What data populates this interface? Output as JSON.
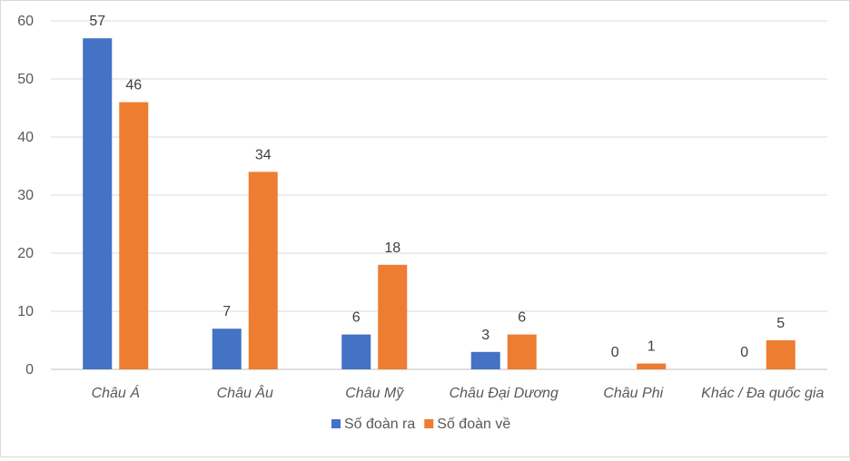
{
  "chart_data": {
    "type": "bar",
    "title": "",
    "xlabel": "",
    "ylabel": "",
    "ylim": [
      0,
      60
    ],
    "yticks": [
      0,
      10,
      20,
      30,
      40,
      50,
      60
    ],
    "grid": true,
    "legend_position": "bottom",
    "categories": [
      "Châu Á",
      "Châu Âu",
      "Châu Mỹ",
      "Châu Đại Dương",
      "Châu Phi",
      "Khác / Đa quốc gia"
    ],
    "series": [
      {
        "name": "Số đoàn ra",
        "color": "#4472c4",
        "values": [
          57,
          7,
          6,
          3,
          0,
          0
        ]
      },
      {
        "name": "Số đoàn về",
        "color": "#ed7d31",
        "values": [
          46,
          34,
          18,
          6,
          1,
          5
        ]
      }
    ]
  }
}
